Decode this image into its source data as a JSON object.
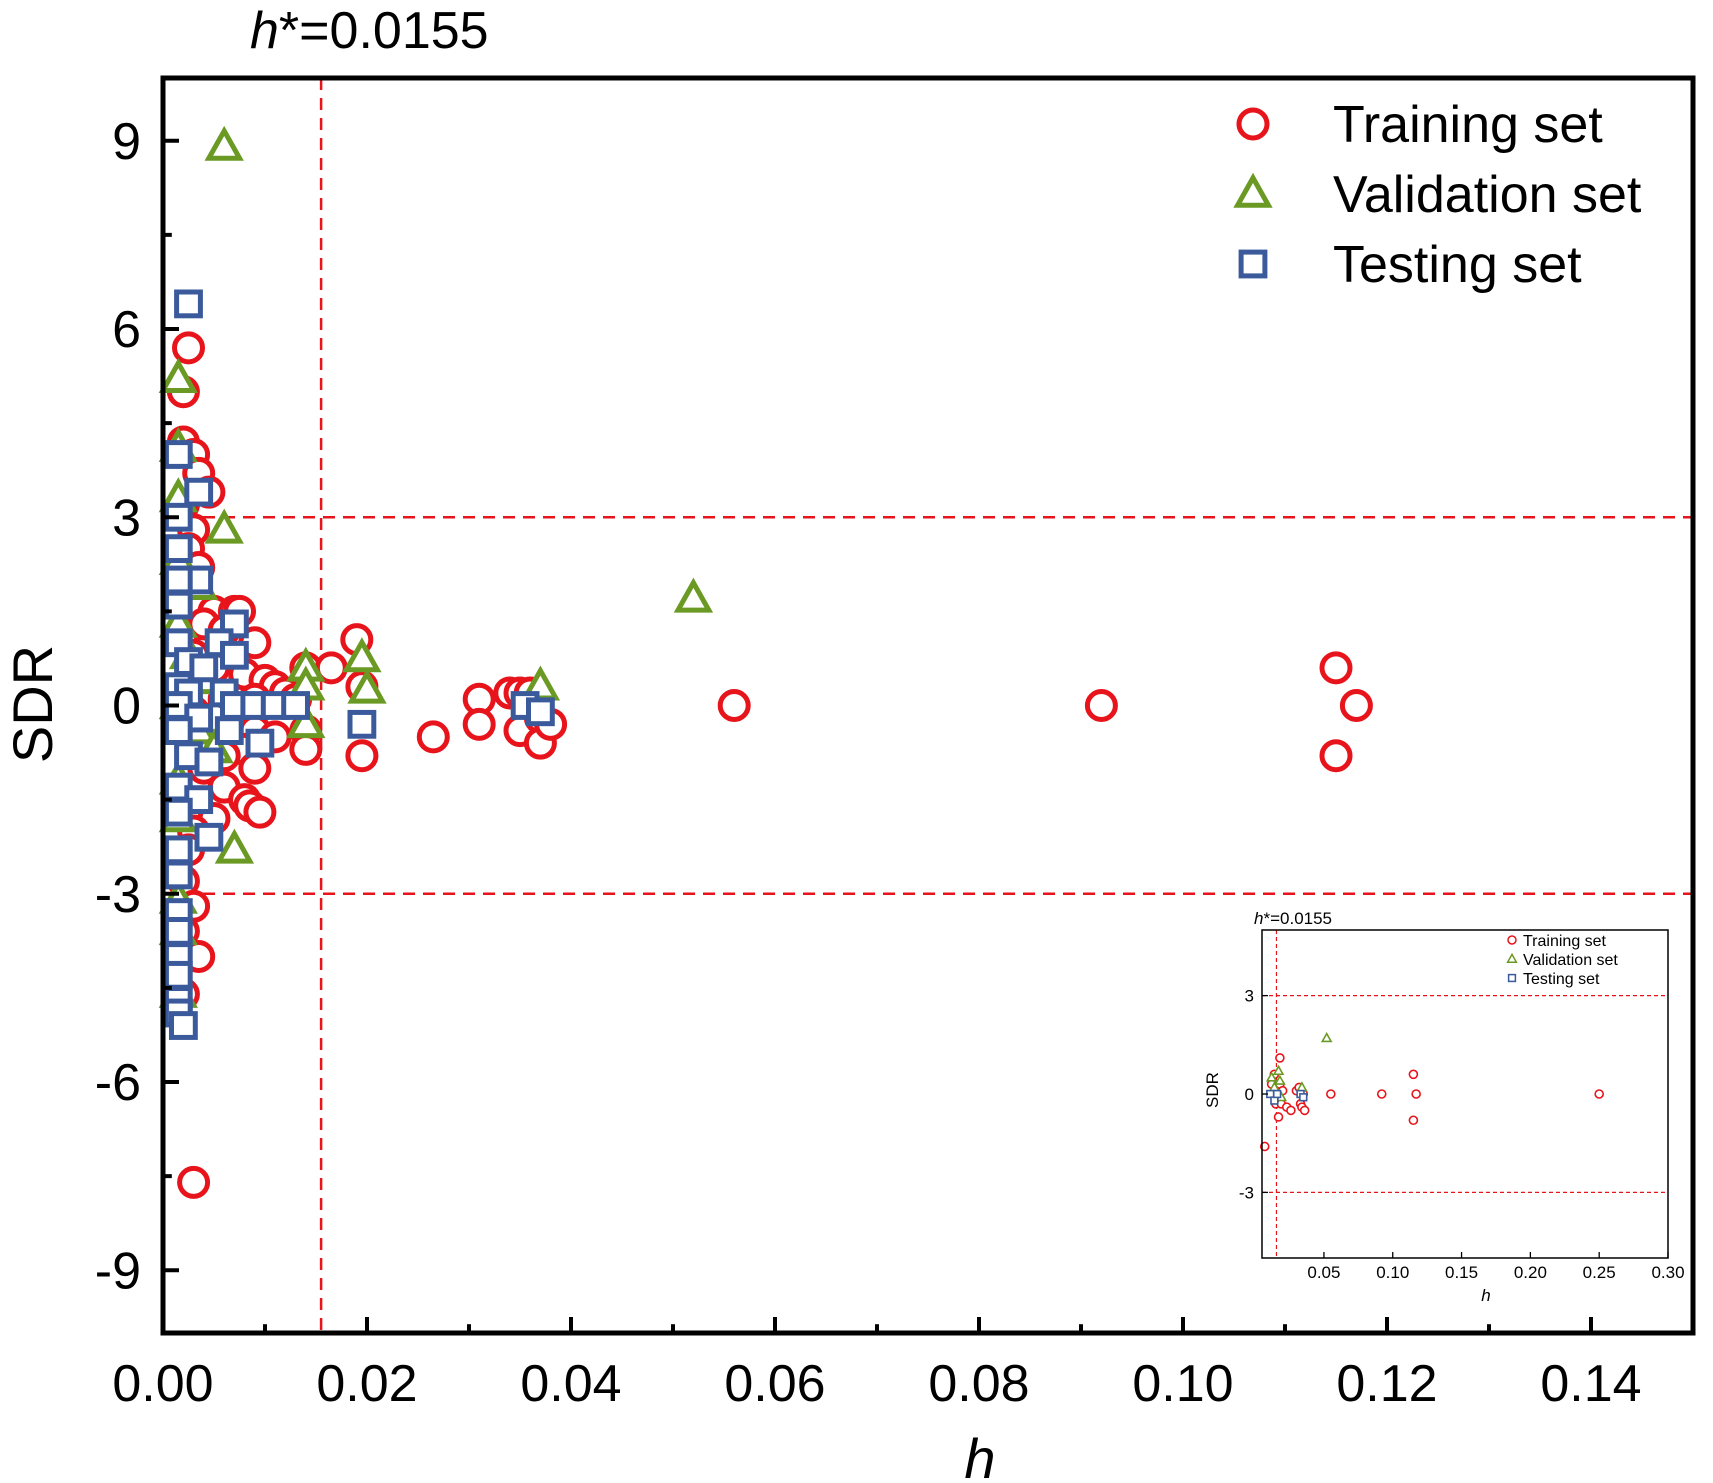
{
  "colors": {
    "training": "#e8141b",
    "validation": "#6a9a23",
    "testing": "#3a5a9c",
    "threshold": "#e8141b",
    "axis": "#000000"
  },
  "chart_data": [
    {
      "type": "scatter",
      "title": "",
      "xlabel": "h",
      "ylabel": "SDR",
      "xlim": [
        0,
        0.15
      ],
      "ylim": [
        -10,
        10
      ],
      "xticks": [
        0,
        0.02,
        0.04,
        0.06,
        0.08,
        0.1,
        0.12,
        0.14
      ],
      "xtick_labels": [
        "0.00",
        "0.02",
        "0.04",
        "0.06",
        "0.08",
        "0.10",
        "0.12",
        "0.14"
      ],
      "yticks": [
        -9,
        -6,
        -3,
        0,
        3,
        6,
        9
      ],
      "ytick_labels": [
        "-9",
        "-6",
        "-3",
        "0",
        "3",
        "6",
        "9"
      ],
      "grid": false,
      "legend_position": "top-right",
      "annotation": {
        "prefix": "h",
        "text": "*=0.0155"
      },
      "thresholds": {
        "h_star": 0.0155,
        "sdr_upper": 3,
        "sdr_lower": -3
      },
      "series": [
        {
          "name": "Training set",
          "marker": "circle",
          "points": [
            [
              0.0025,
              5.7
            ],
            [
              0.002,
              5.0
            ],
            [
              0.002,
              4.2
            ],
            [
              0.003,
              4.0
            ],
            [
              0.0035,
              3.7
            ],
            [
              0.0045,
              3.4
            ],
            [
              0.002,
              3.2
            ],
            [
              0.003,
              2.8
            ],
            [
              0.0025,
              2.5
            ],
            [
              0.0035,
              2.2
            ],
            [
              0.002,
              1.9
            ],
            [
              0.003,
              1.6
            ],
            [
              0.005,
              1.5
            ],
            [
              0.007,
              1.5
            ],
            [
              0.0075,
              1.5
            ],
            [
              0.004,
              1.3
            ],
            [
              0.006,
              1.2
            ],
            [
              0.009,
              1.0
            ],
            [
              0.002,
              1.0
            ],
            [
              0.003,
              0.8
            ],
            [
              0.005,
              0.6
            ],
            [
              0.008,
              0.5
            ],
            [
              0.01,
              0.4
            ],
            [
              0.011,
              0.3
            ],
            [
              0.012,
              0.2
            ],
            [
              0.004,
              0.2
            ],
            [
              0.006,
              0.1
            ],
            [
              0.009,
              0.1
            ],
            [
              0.013,
              0.1
            ],
            [
              0.002,
              0.0
            ],
            [
              0.003,
              -0.1
            ],
            [
              0.005,
              -0.2
            ],
            [
              0.007,
              -0.3
            ],
            [
              0.009,
              -0.4
            ],
            [
              0.011,
              -0.5
            ],
            [
              0.008,
              -0.7
            ],
            [
              0.006,
              -0.8
            ],
            [
              0.004,
              -1.0
            ],
            [
              0.009,
              -1.0
            ],
            [
              0.006,
              -1.3
            ],
            [
              0.008,
              -1.5
            ],
            [
              0.0085,
              -1.6
            ],
            [
              0.0095,
              -1.7
            ],
            [
              0.005,
              -1.8
            ],
            [
              0.003,
              -2.0
            ],
            [
              0.0025,
              -2.3
            ],
            [
              0.002,
              -2.8
            ],
            [
              0.003,
              -3.2
            ],
            [
              0.002,
              -3.6
            ],
            [
              0.0035,
              -4.0
            ],
            [
              0.002,
              -4.6
            ],
            [
              0.003,
              -7.6
            ],
            [
              0.014,
              0.6
            ],
            [
              0.014,
              -0.4
            ],
            [
              0.014,
              -0.7
            ],
            [
              0.0165,
              0.6
            ],
            [
              0.019,
              1.05
            ],
            [
              0.0195,
              0.3
            ],
            [
              0.0195,
              -0.8
            ],
            [
              0.0265,
              -0.5
            ],
            [
              0.031,
              0.1
            ],
            [
              0.031,
              -0.3
            ],
            [
              0.034,
              0.2
            ],
            [
              0.035,
              0.2
            ],
            [
              0.035,
              -0.4
            ],
            [
              0.036,
              0.2
            ],
            [
              0.037,
              -0.2
            ],
            [
              0.037,
              -0.6
            ],
            [
              0.038,
              -0.3
            ],
            [
              0.056,
              0.0
            ],
            [
              0.092,
              0.0
            ],
            [
              0.115,
              0.6
            ],
            [
              0.115,
              -0.8
            ],
            [
              0.117,
              0.0
            ]
          ]
        },
        {
          "name": "Validation set",
          "marker": "triangle",
          "points": [
            [
              0.006,
              8.9
            ],
            [
              0.0015,
              5.2
            ],
            [
              0.0015,
              4.1
            ],
            [
              0.0015,
              3.3
            ],
            [
              0.006,
              2.8
            ],
            [
              0.0015,
              2.3
            ],
            [
              0.0035,
              1.9
            ],
            [
              0.0015,
              1.3
            ],
            [
              0.0025,
              0.8
            ],
            [
              0.004,
              0.4
            ],
            [
              0.0015,
              0.0
            ],
            [
              0.0035,
              -0.4
            ],
            [
              0.005,
              -0.7
            ],
            [
              0.0015,
              -1.2
            ],
            [
              0.0015,
              -1.8
            ],
            [
              0.007,
              -2.3
            ],
            [
              0.0015,
              -3.1
            ],
            [
              0.0015,
              -3.6
            ],
            [
              0.0015,
              -4.6
            ],
            [
              0.014,
              0.6
            ],
            [
              0.014,
              0.3
            ],
            [
              0.014,
              -0.3
            ],
            [
              0.0195,
              0.75
            ],
            [
              0.02,
              0.25
            ],
            [
              0.037,
              0.3
            ],
            [
              0.052,
              1.7
            ]
          ]
        },
        {
          "name": "Testing set",
          "marker": "square",
          "points": [
            [
              0.0025,
              6.4
            ],
            [
              0.0015,
              4.0
            ],
            [
              0.0035,
              3.4
            ],
            [
              0.0015,
              3.0
            ],
            [
              0.0015,
              2.5
            ],
            [
              0.0035,
              2.0
            ],
            [
              0.0015,
              2.0
            ],
            [
              0.0015,
              1.6
            ],
            [
              0.007,
              1.3
            ],
            [
              0.0015,
              1.0
            ],
            [
              0.0055,
              1.0
            ],
            [
              0.007,
              0.8
            ],
            [
              0.0025,
              0.7
            ],
            [
              0.004,
              0.6
            ],
            [
              0.0015,
              0.3
            ],
            [
              0.0025,
              0.2
            ],
            [
              0.006,
              0.2
            ],
            [
              0.007,
              0.0
            ],
            [
              0.009,
              0.0
            ],
            [
              0.011,
              0.0
            ],
            [
              0.013,
              0.0
            ],
            [
              0.0015,
              0.0
            ],
            [
              0.0035,
              -0.2
            ],
            [
              0.0015,
              -0.4
            ],
            [
              0.0065,
              -0.4
            ],
            [
              0.0095,
              -0.6
            ],
            [
              0.0025,
              -0.8
            ],
            [
              0.0045,
              -0.9
            ],
            [
              0.0015,
              -1.3
            ],
            [
              0.0035,
              -1.5
            ],
            [
              0.0015,
              -1.7
            ],
            [
              0.0045,
              -2.1
            ],
            [
              0.0015,
              -2.3
            ],
            [
              0.0015,
              -2.7
            ],
            [
              0.0015,
              -3.3
            ],
            [
              0.0015,
              -3.6
            ],
            [
              0.0015,
              -4.0
            ],
            [
              0.0015,
              -4.3
            ],
            [
              0.0015,
              -4.7
            ],
            [
              0.0015,
              -4.9
            ],
            [
              0.002,
              -5.1
            ],
            [
              0.0195,
              -0.3
            ],
            [
              0.0355,
              0.0
            ],
            [
              0.037,
              -0.1
            ]
          ]
        }
      ]
    },
    {
      "type": "scatter",
      "title": "",
      "xlabel": "h",
      "ylabel": "SDR",
      "xlim": [
        0.005,
        0.3
      ],
      "ylim": [
        -5,
        5
      ],
      "xticks": [
        0.05,
        0.1,
        0.15,
        0.2,
        0.25,
        0.3
      ],
      "xtick_labels": [
        "0.05",
        "0.10",
        "0.15",
        "0.20",
        "0.25",
        "0.30"
      ],
      "yticks": [
        -3,
        0,
        3
      ],
      "ytick_labels": [
        "-3",
        "0",
        "3"
      ],
      "grid": false,
      "legend_position": "top-right",
      "annotation": {
        "prefix": "h",
        "text": "*=0.0155"
      },
      "thresholds": {
        "h_star": 0.0155,
        "sdr_upper": 3,
        "sdr_lower": -3
      },
      "series": [
        {
          "name": "Training set",
          "marker": "circle",
          "points": [
            [
              0.007,
              -1.6
            ],
            [
              0.012,
              0.3
            ],
            [
              0.014,
              0.6
            ],
            [
              0.015,
              -0.3
            ],
            [
              0.017,
              -0.7
            ],
            [
              0.018,
              1.1
            ],
            [
              0.018,
              0.3
            ],
            [
              0.019,
              -0.3
            ],
            [
              0.02,
              0.1
            ],
            [
              0.023,
              -0.4
            ],
            [
              0.026,
              -0.5
            ],
            [
              0.03,
              0.1
            ],
            [
              0.032,
              0.2
            ],
            [
              0.033,
              -0.3
            ],
            [
              0.034,
              -0.4
            ],
            [
              0.035,
              0.0
            ],
            [
              0.036,
              -0.5
            ],
            [
              0.055,
              0.0
            ],
            [
              0.092,
              0.0
            ],
            [
              0.115,
              0.6
            ],
            [
              0.115,
              -0.8
            ],
            [
              0.117,
              0.0
            ],
            [
              0.25,
              0.0
            ]
          ]
        },
        {
          "name": "Validation set",
          "marker": "triangle",
          "points": [
            [
              0.012,
              0.5
            ],
            [
              0.014,
              0.2
            ],
            [
              0.017,
              0.7
            ],
            [
              0.018,
              0.4
            ],
            [
              0.019,
              -0.1
            ],
            [
              0.034,
              0.2
            ],
            [
              0.052,
              1.7
            ]
          ]
        },
        {
          "name": "Testing set",
          "marker": "square",
          "points": [
            [
              0.011,
              0.0
            ],
            [
              0.014,
              -0.2
            ],
            [
              0.016,
              0.0
            ],
            [
              0.033,
              0.0
            ],
            [
              0.035,
              -0.1
            ]
          ]
        }
      ]
    }
  ]
}
